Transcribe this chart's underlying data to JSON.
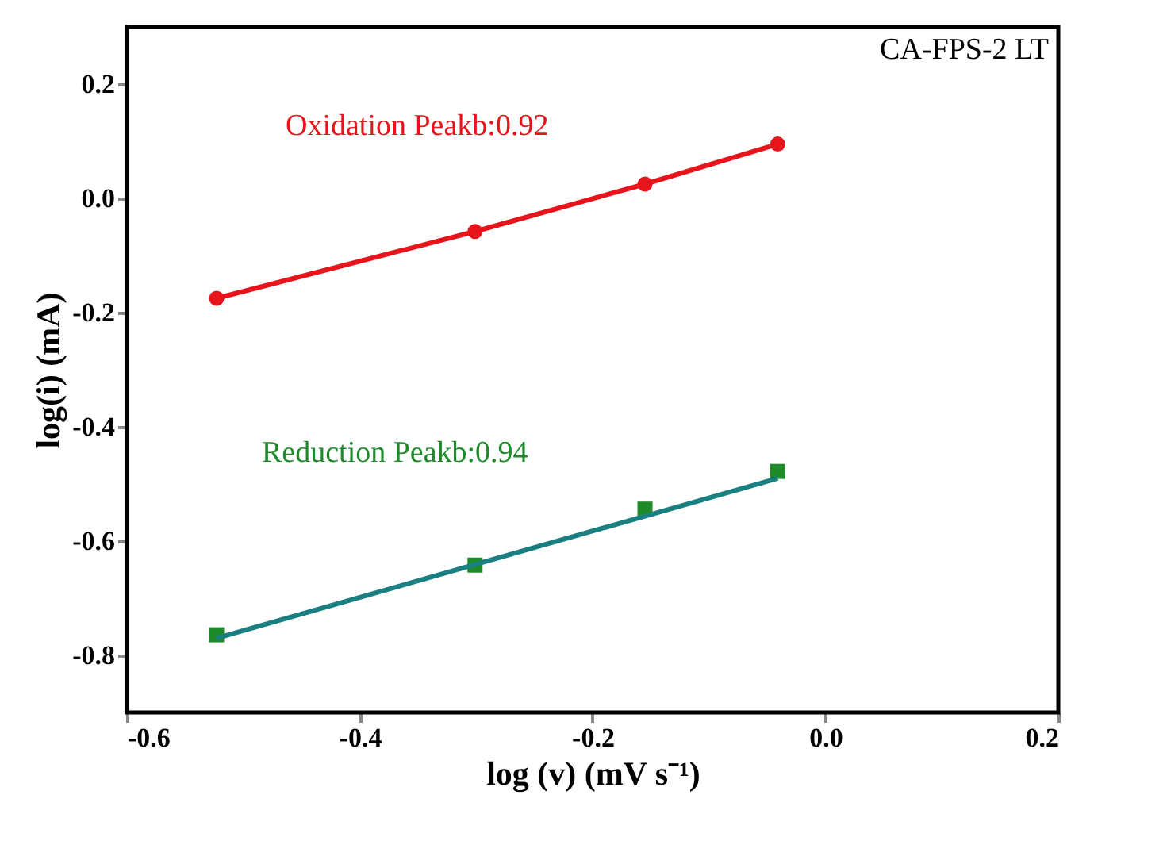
{
  "chart_data": {
    "type": "line",
    "xlabel": "log (v) (mV s⁻¹)",
    "ylabel": "log(i) (mA)",
    "x": [
      -0.523,
      -0.301,
      -0.155,
      -0.041
    ],
    "series": [
      {
        "color": "#e8141c",
        "marker": "circle",
        "values": [
          -0.175,
          -0.058,
          0.025,
          0.095
        ]
      },
      {
        "type": "scatter",
        "color": "#1e8a2a",
        "marker": "square",
        "values": [
          -0.764,
          -0.642,
          -0.544,
          -0.478
        ]
      },
      {
        "type": "line",
        "color": "#1a7f80",
        "marker": "none",
        "x": [
          -0.523,
          -0.041
        ],
        "values": [
          -0.77,
          -0.49
        ]
      }
    ],
    "annotations": [
      "CA-FPS-2 LT",
      "Oxidation Peakb:0.92",
      "Reduction Peakb:0.94"
    ],
    "xlim": [
      -0.6,
      0.2
    ],
    "xticks": [
      -0.6,
      -0.4,
      -0.2,
      {
        "value": 0,
        "label": "0.0"
      },
      0.2
    ],
    "ylim": [
      -0.9,
      0.3
    ],
    "yticks": [
      0.2,
      {
        "value": 0,
        "label": "0.0"
      },
      -0.2,
      -0.4,
      -0.6,
      -0.8
    ],
    "grid": false
  }
}
